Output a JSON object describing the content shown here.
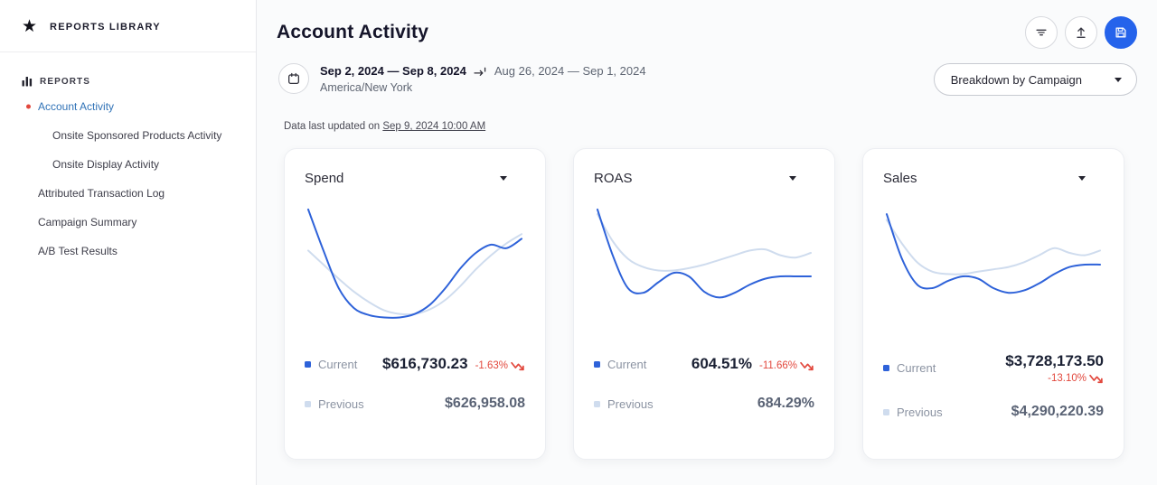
{
  "colors": {
    "accent_blue": "#2563eb",
    "current_line": "#2e62d9",
    "previous_line": "#cfdcee",
    "negative_red": "#e2483d",
    "active_link": "#3173b7"
  },
  "icons": {
    "star": "★"
  },
  "sidebar": {
    "library_label": "REPORTS LIBRARY",
    "section_label": "REPORTS",
    "items": [
      {
        "label": "Account Activity"
      },
      {
        "label": "Onsite Sponsored Products Activity"
      },
      {
        "label": "Onsite Display Activity"
      },
      {
        "label": "Attributed Transaction Log"
      },
      {
        "label": "Campaign Summary"
      },
      {
        "label": "A/B Test Results"
      }
    ]
  },
  "header": {
    "title": "Account Activity"
  },
  "toolbar": {
    "breakdown_selected": "Breakdown by Campaign"
  },
  "date_range": {
    "current": "Sep 2, 2024 — Sep 8, 2024",
    "previous": "Aug 26, 2024 — Sep 1, 2024",
    "timezone": "America/New York"
  },
  "last_updated": {
    "prefix": "Data last updated on ",
    "timestamp": "Sep 9, 2024 10:00 AM"
  },
  "cards": [
    {
      "title": "Spend",
      "current_label": "Current",
      "previous_label": "Previous",
      "current_value": "$616,730.23",
      "change": "-1.63%",
      "previous_value": "$626,958.08"
    },
    {
      "title": "ROAS",
      "current_label": "Current",
      "previous_label": "Previous",
      "current_value": "604.51%",
      "change": "-11.66%",
      "previous_value": "684.29%"
    },
    {
      "title": "Sales",
      "current_label": "Current",
      "previous_label": "Previous",
      "current_value": "$3,728,173.50",
      "change": "-13.10%",
      "previous_value": "$4,290,220.39"
    }
  ],
  "chart_data": [
    {
      "type": "line",
      "title": "Spend",
      "xlabel": "",
      "ylabel": "",
      "axes": "hidden",
      "legend_position": "bottom",
      "series": [
        {
          "name": "Current",
          "color": "#2e62d9",
          "values": [
            0.97,
            0.62,
            0.3,
            0.13,
            0.07,
            0.05,
            0.05,
            0.08,
            0.16,
            0.3,
            0.47,
            0.6,
            0.67,
            0.64,
            0.72
          ]
        },
        {
          "name": "Previous",
          "color": "#cfdcee",
          "values": [
            0.62,
            0.5,
            0.38,
            0.27,
            0.18,
            0.11,
            0.08,
            0.08,
            0.12,
            0.2,
            0.32,
            0.46,
            0.58,
            0.68,
            0.76
          ]
        }
      ]
    },
    {
      "type": "line",
      "title": "ROAS",
      "xlabel": "",
      "ylabel": "",
      "axes": "hidden",
      "legend_position": "bottom",
      "series": [
        {
          "name": "Current",
          "color": "#2e62d9",
          "values": [
            0.97,
            0.58,
            0.3,
            0.26,
            0.35,
            0.43,
            0.4,
            0.27,
            0.22,
            0.26,
            0.33,
            0.38,
            0.4,
            0.4,
            0.4
          ]
        },
        {
          "name": "Previous",
          "color": "#cfdcee",
          "values": [
            0.93,
            0.7,
            0.55,
            0.48,
            0.45,
            0.45,
            0.47,
            0.5,
            0.54,
            0.58,
            0.62,
            0.63,
            0.58,
            0.56,
            0.6
          ]
        }
      ]
    },
    {
      "type": "line",
      "title": "Sales",
      "xlabel": "",
      "ylabel": "",
      "axes": "hidden",
      "legend_position": "bottom",
      "series": [
        {
          "name": "Current",
          "color": "#2e62d9",
          "values": [
            0.93,
            0.55,
            0.33,
            0.3,
            0.36,
            0.4,
            0.38,
            0.3,
            0.26,
            0.28,
            0.34,
            0.42,
            0.48,
            0.5,
            0.5
          ]
        },
        {
          "name": "Previous",
          "color": "#cfdcee",
          "values": [
            0.88,
            0.68,
            0.52,
            0.44,
            0.42,
            0.42,
            0.44,
            0.46,
            0.48,
            0.52,
            0.58,
            0.64,
            0.6,
            0.58,
            0.62
          ]
        }
      ]
    }
  ]
}
